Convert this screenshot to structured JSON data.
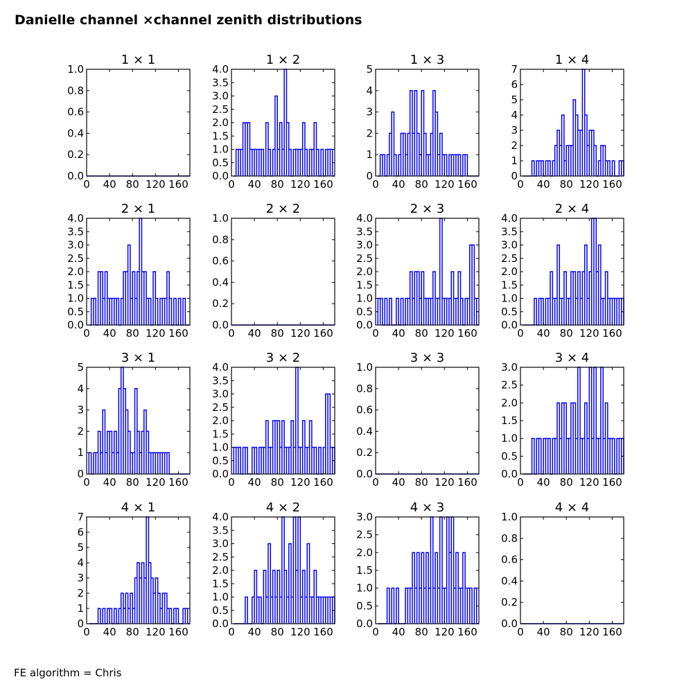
{
  "figure": {
    "title": "Danielle channel ×channel zenith distributions",
    "footnote": "FE algorithm = Chris",
    "line_color": "#0000ff"
  },
  "chart_data": [
    {
      "type": "line",
      "title": "1  × 1",
      "ylim": [
        0,
        1.0
      ],
      "yticks": [
        "0.0",
        "0.2",
        "0.4",
        "0.6",
        "0.8",
        "1.0"
      ],
      "xlim": [
        0,
        180
      ],
      "xticks": [
        "0",
        "40",
        "80",
        "120",
        "160"
      ],
      "x": [],
      "y": []
    },
    {
      "type": "line",
      "title": "1  × 2",
      "ylim": [
        0,
        4.0
      ],
      "yticks": [
        "0.0",
        "0.5",
        "1.0",
        "1.5",
        "2.0",
        "2.5",
        "3.0",
        "3.5",
        "4.0"
      ],
      "xlim": [
        0,
        180
      ],
      "xticks": [
        "0",
        "40",
        "80",
        "120",
        "160"
      ],
      "x": [
        6,
        10,
        14,
        18,
        22,
        26,
        30,
        34,
        38,
        42,
        46,
        50,
        54,
        58,
        62,
        66,
        70,
        74,
        78,
        82,
        86,
        90,
        94,
        98,
        102,
        106,
        110,
        114,
        118,
        122,
        126,
        130,
        134,
        138,
        142,
        146,
        150,
        154,
        158,
        162,
        166,
        170,
        174,
        178
      ],
      "y": [
        0,
        1,
        1,
        1,
        2,
        2,
        2,
        1,
        1,
        1,
        1,
        1,
        1,
        0,
        2,
        1,
        0,
        1,
        3,
        1,
        2,
        1,
        4,
        2,
        1,
        0,
        1,
        1,
        1,
        1,
        2,
        1,
        0,
        1,
        1,
        2,
        1,
        0,
        1,
        0,
        1,
        1,
        1,
        0
      ]
    },
    {
      "type": "line",
      "title": "1  × 3",
      "ylim": [
        0,
        5
      ],
      "yticks": [
        "0",
        "1",
        "2",
        "3",
        "4",
        "5"
      ],
      "xlim": [
        0,
        180
      ],
      "xticks": [
        "0",
        "40",
        "80",
        "120",
        "160"
      ],
      "x": [
        6,
        10,
        14,
        18,
        22,
        26,
        30,
        34,
        38,
        42,
        46,
        50,
        54,
        58,
        62,
        66,
        70,
        74,
        78,
        82,
        86,
        90,
        94,
        98,
        102,
        106,
        110,
        114,
        118,
        122,
        126,
        130,
        134,
        138,
        142,
        146,
        150,
        154,
        158,
        162,
        166,
        170,
        174,
        178
      ],
      "y": [
        0,
        1,
        1,
        0,
        1,
        2,
        3,
        1,
        0,
        1,
        2,
        2,
        1,
        2,
        4,
        2,
        4,
        2,
        1,
        4,
        2,
        1,
        1,
        2,
        4,
        3,
        1,
        2,
        1,
        1,
        0,
        1,
        1,
        1,
        1,
        1,
        0,
        1,
        1,
        0,
        0,
        0,
        0,
        0
      ]
    },
    {
      "type": "line",
      "title": "1  × 4",
      "ylim": [
        0,
        7
      ],
      "yticks": [
        "0",
        "1",
        "2",
        "3",
        "4",
        "5",
        "6",
        "7"
      ],
      "xlim": [
        0,
        180
      ],
      "xticks": [
        "0",
        "40",
        "80",
        "120",
        "160"
      ],
      "x": [
        6,
        10,
        14,
        18,
        22,
        26,
        30,
        34,
        38,
        42,
        46,
        50,
        54,
        58,
        62,
        66,
        70,
        74,
        78,
        82,
        86,
        90,
        94,
        98,
        102,
        106,
        110,
        114,
        118,
        122,
        126,
        130,
        134,
        138,
        142,
        146,
        150,
        154,
        158,
        162,
        166,
        170,
        174,
        178
      ],
      "y": [
        0,
        0,
        0,
        0,
        1,
        0,
        1,
        1,
        1,
        0,
        1,
        1,
        0,
        1,
        2,
        3,
        2,
        4,
        1,
        2,
        2,
        2,
        5,
        4,
        3,
        3,
        7,
        4,
        2,
        3,
        3,
        2,
        0,
        1,
        2,
        2,
        1,
        1,
        0,
        1,
        0,
        0,
        1,
        1
      ]
    },
    {
      "type": "line",
      "title": "2  × 1",
      "ylim": [
        0,
        4.0
      ],
      "yticks": [
        "0.0",
        "0.5",
        "1.0",
        "1.5",
        "2.0",
        "2.5",
        "3.0",
        "3.5",
        "4.0"
      ],
      "xlim": [
        0,
        180
      ],
      "xticks": [
        "0",
        "40",
        "80",
        "120",
        "160"
      ],
      "x": [
        6,
        10,
        14,
        18,
        22,
        26,
        30,
        34,
        38,
        42,
        46,
        50,
        54,
        58,
        62,
        66,
        70,
        74,
        78,
        82,
        86,
        90,
        94,
        98,
        102,
        106,
        110,
        114,
        118,
        122,
        126,
        130,
        134,
        138,
        142,
        146,
        150,
        154,
        158,
        162,
        166,
        170,
        174,
        178
      ],
      "y": [
        0,
        1,
        1,
        0,
        2,
        2,
        1,
        2,
        1,
        1,
        1,
        1,
        1,
        0,
        1,
        2,
        2,
        3,
        1,
        2,
        1,
        2,
        4,
        2,
        2,
        1,
        1,
        0,
        2,
        1,
        0,
        1,
        1,
        1,
        2,
        1,
        0,
        1,
        0,
        1,
        0,
        1,
        0,
        0
      ]
    },
    {
      "type": "line",
      "title": "2  × 2",
      "ylim": [
        0,
        1.0
      ],
      "yticks": [
        "0.0",
        "0.2",
        "0.4",
        "0.6",
        "0.8",
        "1.0"
      ],
      "xlim": [
        0,
        180
      ],
      "xticks": [
        "0",
        "40",
        "80",
        "120",
        "160"
      ],
      "x": [],
      "y": []
    },
    {
      "type": "line",
      "title": "2  × 3",
      "ylim": [
        0,
        4.0
      ],
      "yticks": [
        "0.0",
        "0.5",
        "1.0",
        "1.5",
        "2.0",
        "2.5",
        "3.0",
        "3.5",
        "4.0"
      ],
      "xlim": [
        0,
        180
      ],
      "xticks": [
        "0",
        "40",
        "80",
        "120",
        "160"
      ],
      "x": [
        6,
        10,
        14,
        18,
        22,
        26,
        30,
        34,
        38,
        42,
        46,
        50,
        54,
        58,
        62,
        66,
        70,
        74,
        78,
        82,
        86,
        90,
        94,
        98,
        102,
        106,
        110,
        114,
        118,
        122,
        126,
        130,
        134,
        138,
        142,
        146,
        150,
        154,
        158,
        162,
        166,
        170,
        174,
        178
      ],
      "y": [
        1,
        1,
        0,
        1,
        0,
        1,
        0,
        0,
        1,
        0,
        1,
        0,
        1,
        1,
        2,
        1,
        2,
        2,
        1,
        2,
        1,
        1,
        1,
        1,
        2,
        1,
        1,
        4,
        1,
        1,
        1,
        1,
        2,
        1,
        1,
        2,
        1,
        0,
        1,
        1,
        3,
        3,
        1,
        0
      ]
    },
    {
      "type": "line",
      "title": "2  × 4",
      "ylim": [
        0,
        4.0
      ],
      "yticks": [
        "0.0",
        "0.5",
        "1.0",
        "1.5",
        "2.0",
        "2.5",
        "3.0",
        "3.5",
        "4.0"
      ],
      "xlim": [
        0,
        180
      ],
      "xticks": [
        "0",
        "40",
        "80",
        "120",
        "160"
      ],
      "x": [
        6,
        10,
        14,
        18,
        22,
        26,
        30,
        34,
        38,
        42,
        46,
        50,
        54,
        58,
        62,
        66,
        70,
        74,
        78,
        82,
        86,
        90,
        94,
        98,
        102,
        106,
        110,
        114,
        118,
        122,
        126,
        130,
        134,
        138,
        142,
        146,
        150,
        154,
        158,
        162,
        166,
        170,
        174,
        178
      ],
      "y": [
        0,
        0,
        0,
        0,
        0,
        1,
        0,
        1,
        1,
        0,
        1,
        1,
        2,
        1,
        1,
        3,
        1,
        1,
        2,
        1,
        1,
        2,
        2,
        1,
        2,
        1,
        2,
        3,
        1,
        2,
        4,
        4,
        2,
        3,
        1,
        1,
        2,
        1,
        1,
        1,
        1,
        1,
        1,
        1
      ]
    },
    {
      "type": "line",
      "title": "3  × 1",
      "ylim": [
        0,
        5
      ],
      "yticks": [
        "0",
        "1",
        "2",
        "3",
        "4",
        "5"
      ],
      "xlim": [
        0,
        180
      ],
      "xticks": [
        "0",
        "40",
        "80",
        "120",
        "160"
      ],
      "x": [
        6,
        10,
        14,
        18,
        22,
        26,
        30,
        34,
        38,
        42,
        46,
        50,
        54,
        58,
        62,
        66,
        70,
        74,
        78,
        82,
        86,
        90,
        94,
        98,
        102,
        106,
        110,
        114,
        118,
        122,
        126,
        130,
        134,
        138,
        142,
        146,
        150,
        154,
        158,
        162,
        166,
        170,
        174,
        178
      ],
      "y": [
        1,
        0,
        1,
        1,
        2,
        1,
        3,
        1,
        2,
        2,
        1,
        2,
        1,
        4,
        5,
        4,
        3,
        2,
        1,
        1,
        4,
        2,
        1,
        2,
        3,
        2,
        1,
        1,
        1,
        1,
        1,
        1,
        1,
        1,
        1,
        0,
        0,
        0,
        0,
        0,
        0,
        0,
        0,
        0
      ]
    },
    {
      "type": "line",
      "title": "3  × 2",
      "ylim": [
        0,
        4.0
      ],
      "yticks": [
        "0.0",
        "0.5",
        "1.0",
        "1.5",
        "2.0",
        "2.5",
        "3.0",
        "3.5",
        "4.0"
      ],
      "xlim": [
        0,
        180
      ],
      "xticks": [
        "0",
        "40",
        "80",
        "120",
        "160"
      ],
      "x": [
        6,
        10,
        14,
        18,
        22,
        26,
        30,
        34,
        38,
        42,
        46,
        50,
        54,
        58,
        62,
        66,
        70,
        74,
        78,
        82,
        86,
        90,
        94,
        98,
        102,
        106,
        110,
        114,
        118,
        122,
        126,
        130,
        134,
        138,
        142,
        146,
        150,
        154,
        158,
        162,
        166,
        170,
        174,
        178
      ],
      "y": [
        1,
        1,
        1,
        0,
        1,
        1,
        0,
        0,
        1,
        1,
        0,
        1,
        1,
        1,
        2,
        1,
        1,
        2,
        2,
        2,
        1,
        2,
        1,
        1,
        1,
        2,
        1,
        4,
        1,
        1,
        2,
        1,
        1,
        2,
        1,
        1,
        0,
        1,
        0,
        1,
        3,
        3,
        1,
        1
      ]
    },
    {
      "type": "line",
      "title": "3  × 3",
      "ylim": [
        0,
        1.0
      ],
      "yticks": [
        "0.0",
        "0.2",
        "0.4",
        "0.6",
        "0.8",
        "1.0"
      ],
      "xlim": [
        0,
        180
      ],
      "xticks": [
        "0",
        "40",
        "80",
        "120",
        "160"
      ],
      "x": [],
      "y": []
    },
    {
      "type": "line",
      "title": "3  × 4",
      "ylim": [
        0,
        3.0
      ],
      "yticks": [
        "0.0",
        "0.5",
        "1.0",
        "1.5",
        "2.0",
        "2.5",
        "3.0"
      ],
      "xlim": [
        0,
        180
      ],
      "xticks": [
        "0",
        "40",
        "80",
        "120",
        "160"
      ],
      "x": [
        6,
        10,
        14,
        18,
        22,
        26,
        30,
        34,
        38,
        42,
        46,
        50,
        54,
        58,
        62,
        66,
        70,
        74,
        78,
        82,
        86,
        90,
        94,
        98,
        102,
        106,
        110,
        114,
        118,
        122,
        126,
        130,
        134,
        138,
        142,
        146,
        150,
        154,
        158,
        162,
        166,
        170,
        174,
        178
      ],
      "y": [
        0,
        0,
        0,
        0,
        1,
        0,
        1,
        1,
        0,
        1,
        1,
        1,
        0,
        1,
        1,
        2,
        1,
        2,
        2,
        1,
        1,
        2,
        2,
        1,
        3,
        1,
        1,
        2,
        1,
        3,
        1,
        3,
        1,
        1,
        3,
        1,
        2,
        1,
        1,
        1,
        0,
        1,
        1,
        1
      ]
    },
    {
      "type": "line",
      "title": "4  × 1",
      "ylim": [
        0,
        7
      ],
      "yticks": [
        "0",
        "1",
        "2",
        "3",
        "4",
        "5",
        "6",
        "7"
      ],
      "xlim": [
        0,
        180
      ],
      "xticks": [
        "0",
        "40",
        "80",
        "120",
        "160"
      ],
      "x": [
        6,
        10,
        14,
        18,
        22,
        26,
        30,
        34,
        38,
        42,
        46,
        50,
        54,
        58,
        62,
        66,
        70,
        74,
        78,
        82,
        86,
        90,
        94,
        98,
        102,
        106,
        110,
        114,
        118,
        122,
        126,
        130,
        134,
        138,
        142,
        146,
        150,
        154,
        158,
        162,
        166,
        170,
        174,
        178
      ],
      "y": [
        0,
        0,
        0,
        0,
        1,
        0,
        1,
        0,
        1,
        1,
        0,
        1,
        0,
        1,
        2,
        1,
        2,
        1,
        2,
        1,
        3,
        4,
        3,
        4,
        3,
        7,
        4,
        3,
        2,
        3,
        2,
        1,
        2,
        2,
        1,
        1,
        0,
        1,
        1,
        0,
        0,
        1,
        1,
        0
      ]
    },
    {
      "type": "line",
      "title": "4  × 2",
      "ylim": [
        0,
        4.0
      ],
      "yticks": [
        "0.0",
        "0.5",
        "1.0",
        "1.5",
        "2.0",
        "2.5",
        "3.0",
        "3.5",
        "4.0"
      ],
      "xlim": [
        0,
        180
      ],
      "xticks": [
        "0",
        "40",
        "80",
        "120",
        "160"
      ],
      "x": [
        6,
        10,
        14,
        18,
        22,
        26,
        30,
        34,
        38,
        42,
        46,
        50,
        54,
        58,
        62,
        66,
        70,
        74,
        78,
        82,
        86,
        90,
        94,
        98,
        102,
        106,
        110,
        114,
        118,
        122,
        126,
        130,
        134,
        138,
        142,
        146,
        150,
        154,
        158,
        162,
        166,
        170,
        174,
        178
      ],
      "y": [
        0,
        0,
        0,
        0,
        0,
        1,
        0,
        0,
        1,
        2,
        1,
        1,
        0,
        2,
        1,
        3,
        1,
        2,
        1,
        2,
        1,
        4,
        2,
        1,
        3,
        1,
        4,
        2,
        4,
        1,
        2,
        1,
        3,
        1,
        1,
        2,
        1,
        1,
        1,
        1,
        1,
        1,
        1,
        1
      ]
    },
    {
      "type": "line",
      "title": "4  × 3",
      "ylim": [
        0,
        3.0
      ],
      "yticks": [
        "0.0",
        "0.5",
        "1.0",
        "1.5",
        "2.0",
        "2.5",
        "3.0"
      ],
      "xlim": [
        0,
        180
      ],
      "xticks": [
        "0",
        "40",
        "80",
        "120",
        "160"
      ],
      "x": [
        6,
        10,
        14,
        18,
        22,
        26,
        30,
        34,
        38,
        42,
        46,
        50,
        54,
        58,
        62,
        66,
        70,
        74,
        78,
        82,
        86,
        90,
        94,
        98,
        102,
        106,
        110,
        114,
        118,
        122,
        126,
        130,
        134,
        138,
        142,
        146,
        150,
        154,
        158,
        162,
        166,
        170,
        174,
        178
      ],
      "y": [
        0,
        0,
        0,
        0,
        1,
        0,
        1,
        0,
        1,
        0,
        0,
        0,
        1,
        1,
        1,
        2,
        1,
        2,
        1,
        2,
        1,
        2,
        1,
        3,
        1,
        2,
        1,
        3,
        1,
        1,
        3,
        2,
        3,
        1,
        2,
        1,
        1,
        2,
        1,
        1,
        1,
        0,
        1,
        0
      ]
    },
    {
      "type": "line",
      "title": "4  × 4",
      "ylim": [
        0,
        1.0
      ],
      "yticks": [
        "0.0",
        "0.2",
        "0.4",
        "0.6",
        "0.8",
        "1.0"
      ],
      "xlim": [
        0,
        180
      ],
      "xticks": [
        "0",
        "40",
        "80",
        "120",
        "160"
      ],
      "x": [],
      "y": []
    }
  ]
}
